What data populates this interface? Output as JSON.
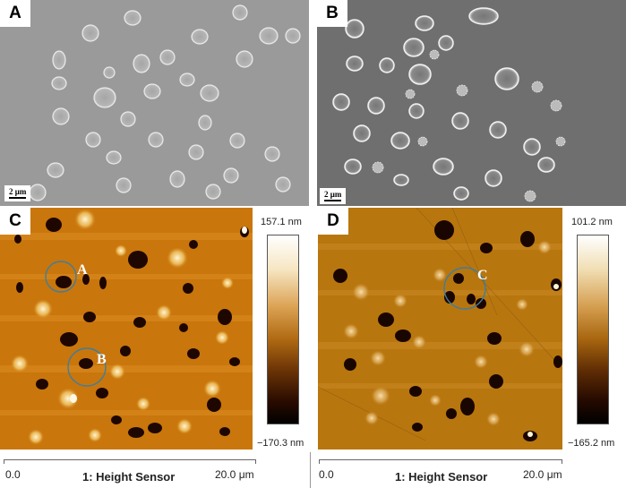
{
  "panels": {
    "A": {
      "label": "A",
      "scale": "2 μm"
    },
    "B": {
      "label": "B",
      "scale": "2 μm"
    },
    "C": {
      "label": "C",
      "max": "157.1 nm",
      "min": "−170.3 nm",
      "circle_labels": [
        "A",
        "B"
      ],
      "x_start": "0.0",
      "x_title": "1: Height Sensor",
      "x_end": "20.0 μm"
    },
    "D": {
      "label": "D",
      "max": "101.2 nm",
      "min": "−165.2 nm",
      "circle_labels": [
        "C"
      ],
      "x_start": "0.0",
      "x_title": "1: Height Sensor",
      "x_end": "20.0 μm"
    }
  },
  "colors": {
    "sem_a_bg": "#9a9a9a",
    "sem_b_bg": "#6f6f6f",
    "afm_c_bg": "#c9760c",
    "afm_d_bg": "#b8760e",
    "circle": "#3f7ea0"
  }
}
